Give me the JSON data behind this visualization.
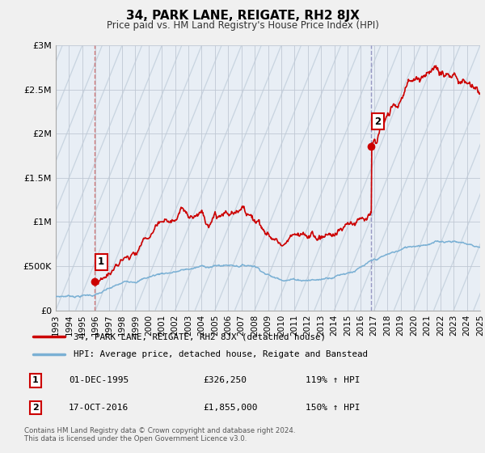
{
  "title": "34, PARK LANE, REIGATE, RH2 8JX",
  "subtitle": "Price paid vs. HM Land Registry's House Price Index (HPI)",
  "bg_color": "#f0f0f0",
  "plot_bg_color": "#e8eef5",
  "hatch_color": "#c8d4e0",
  "sale1_date": 1995.92,
  "sale1_price": 326250,
  "sale2_date": 2016.79,
  "sale2_price": 1855000,
  "red_line_color": "#cc0000",
  "blue_line_color": "#7ab0d4",
  "marker_color": "#cc0000",
  "vline1_color": "#cc6666",
  "vline2_color": "#8888bb",
  "legend_line1": "34, PARK LANE, REIGATE, RH2 8JX (detached house)",
  "legend_line2": "HPI: Average price, detached house, Reigate and Banstead",
  "note1_num": "1",
  "note1_date": "01-DEC-1995",
  "note1_price": "£326,250",
  "note1_hpi": "119% ↑ HPI",
  "note2_num": "2",
  "note2_date": "17-OCT-2016",
  "note2_price": "£1,855,000",
  "note2_hpi": "150% ↑ HPI",
  "footer": "Contains HM Land Registry data © Crown copyright and database right 2024.\nThis data is licensed under the Open Government Licence v3.0.",
  "xlim": [
    1993,
    2025
  ],
  "ylim": [
    0,
    3000000
  ],
  "yticks": [
    0,
    500000,
    1000000,
    1500000,
    2000000,
    2500000,
    3000000
  ],
  "ytick_labels": [
    "£0",
    "£500K",
    "£1M",
    "£1.5M",
    "£2M",
    "£2.5M",
    "£3M"
  ]
}
